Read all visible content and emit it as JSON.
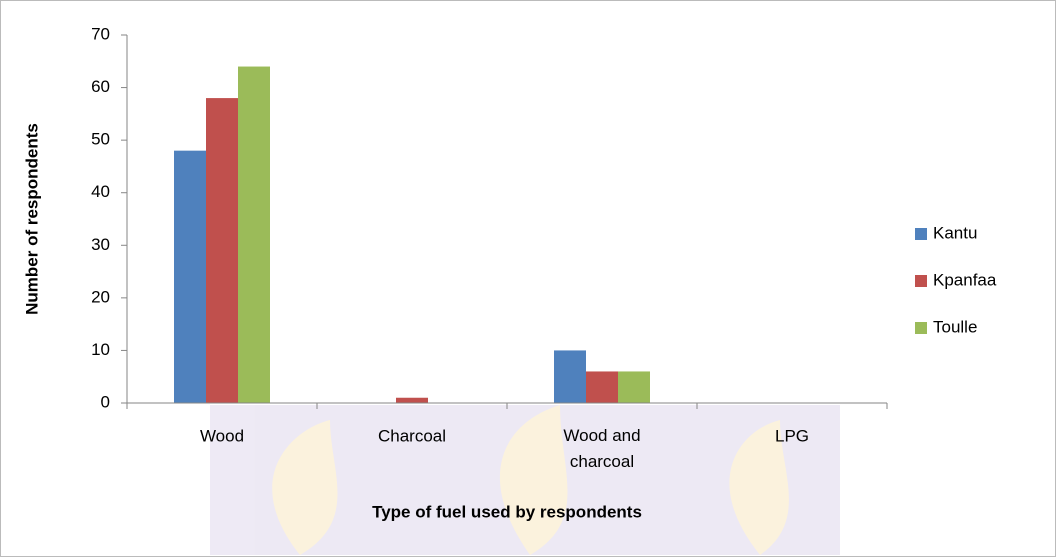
{
  "chart_data": {
    "type": "bar",
    "categories": [
      "Wood",
      "Charcoal",
      "Wood and charcoal",
      "LPG"
    ],
    "series": [
      {
        "name": "Kantu",
        "color": "#4f81bd",
        "values": [
          48,
          0,
          10,
          0
        ]
      },
      {
        "name": "Kpanfaa",
        "color": "#c0504d",
        "values": [
          58,
          1,
          6,
          0
        ]
      },
      {
        "name": "Toulle",
        "color": "#9bbb59",
        "values": [
          64,
          0,
          6,
          0
        ]
      }
    ],
    "x_label": "Type of fuel used by respondents",
    "y_label": "Number of respondents",
    "ylim": [
      0,
      70
    ],
    "yticks": [
      0,
      10,
      20,
      30,
      40,
      50,
      60,
      70
    ],
    "grid": false,
    "legend": "right"
  }
}
